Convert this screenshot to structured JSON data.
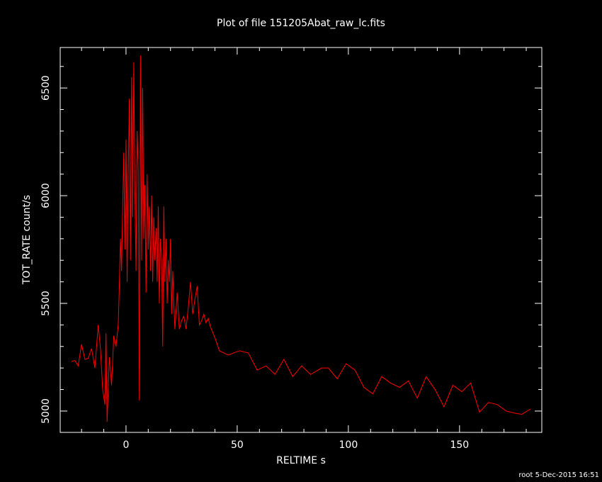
{
  "chart_data": {
    "type": "line",
    "title": "Plot of file 151205Abat_raw_lc.fits",
    "x_label": "RELTIME  s",
    "y_label": "TOT_RATE  count/s",
    "footer": "root  5-Dec-2015 16:51",
    "xlim": [
      -29.6,
      187
    ],
    "ylim": [
      4901,
      6688
    ],
    "xticks": [
      0,
      50,
      100,
      150
    ],
    "yticks": [
      5000,
      5500,
      6000,
      6500
    ],
    "xminorticks": [
      -20,
      -10,
      10,
      20,
      30,
      40,
      60,
      70,
      80,
      90,
      110,
      120,
      130,
      140,
      160,
      170,
      180
    ],
    "yminorticks": [
      5100,
      5200,
      5300,
      5400,
      5600,
      5700,
      5800,
      5900,
      6100,
      6200,
      6300,
      6400,
      6600
    ],
    "x": [
      -24.5,
      -23,
      -21.5,
      -20,
      -18.5,
      -17,
      -15.5,
      -14,
      -12.5,
      -11.5,
      -10.5,
      -9.5,
      -9,
      -8.5,
      -7.5,
      -6.5,
      -5.5,
      -4.5,
      -3.5,
      -3,
      -2.5,
      -2,
      -1.5,
      -1,
      -0.5,
      0,
      0.5,
      1,
      1.5,
      2,
      2.5,
      3,
      3.5,
      4,
      4.5,
      5,
      5.5,
      6,
      6.5,
      7,
      7.5,
      8,
      8.5,
      9,
      9.5,
      10,
      10.5,
      11,
      11.5,
      12,
      12.5,
      13,
      13.5,
      14,
      14.5,
      15,
      15.5,
      16,
      16.5,
      17,
      17.5,
      18,
      18.5,
      19,
      19.5,
      20,
      20.5,
      21,
      21.5,
      22,
      23,
      24,
      25,
      26,
      27,
      28,
      29,
      30,
      31,
      32,
      33,
      34,
      35,
      36,
      37,
      38,
      40,
      42,
      46,
      51,
      55,
      59,
      63,
      67,
      71,
      75,
      79,
      83,
      88,
      91,
      95,
      99,
      103,
      107,
      111,
      115,
      119,
      123,
      127,
      131,
      135,
      139,
      143,
      147,
      151,
      155,
      159,
      163,
      167,
      171,
      175,
      178,
      182
    ],
    "series": [
      {
        "color": "#ff0000",
        "values": [
          5230,
          5235,
          5210,
          5310,
          5240,
          5245,
          5290,
          5200,
          5400,
          5290,
          5100,
          5030,
          5360,
          4950,
          5250,
          5120,
          5350,
          5300,
          5400,
          5580,
          5800,
          5650,
          5950,
          6200,
          5750,
          6260,
          5600,
          6100,
          6450,
          5700,
          6550,
          5900,
          6620,
          6000,
          5650,
          6300,
          6130,
          5050,
          6650,
          5700,
          6500,
          5800,
          6050,
          5550,
          6100,
          5750,
          5950,
          5650,
          6000,
          5600,
          5900,
          5700,
          5850,
          5600,
          5950,
          5500,
          5800,
          5700,
          5300,
          5950,
          5600,
          5800,
          5500,
          5700,
          5600,
          5800,
          5450,
          5650,
          5500,
          5380,
          5550,
          5380,
          5420,
          5440,
          5380,
          5480,
          5600,
          5450,
          5520,
          5580,
          5400,
          5420,
          5450,
          5410,
          5430,
          5390,
          5340,
          5280,
          5260,
          5280,
          5270,
          5190,
          5210,
          5170,
          5240,
          5160,
          5210,
          5170,
          5200,
          5200,
          5150,
          5220,
          5190,
          5110,
          5080,
          5160,
          5130,
          5110,
          5140,
          5060,
          5160,
          5100,
          5020,
          5120,
          5090,
          5130,
          4995,
          5040,
          5030,
          5000,
          4990,
          4985,
          5010
        ]
      }
    ]
  }
}
